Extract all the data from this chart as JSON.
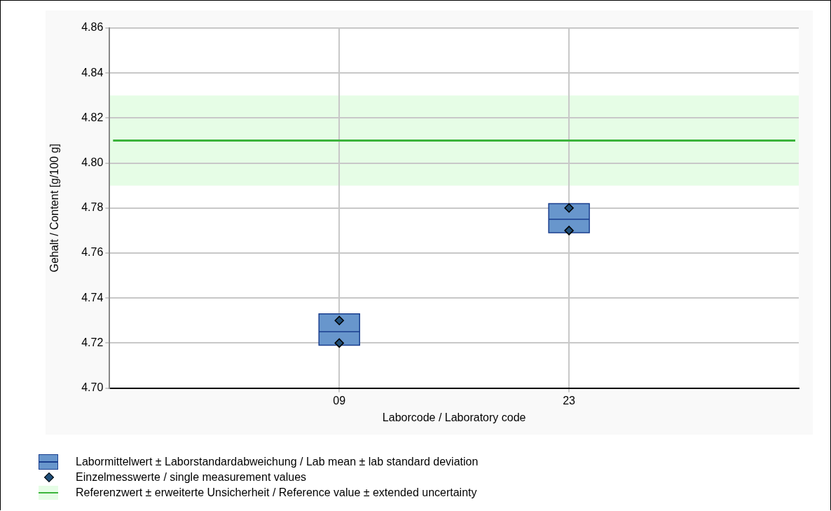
{
  "chart_data": {
    "type": "box",
    "xlabel": "Laborcode / Laboratory code",
    "ylabel": "Gehalt / Content [g/100 g]",
    "categories": [
      "09",
      "23"
    ],
    "series": [
      {
        "name": "Labormittelwert ± Laborstandardabweichung / Lab mean ± lab standard deviation",
        "color": "#6896cc",
        "boxes": [
          {
            "low": 4.719,
            "q1": 4.719,
            "median": 4.725,
            "q3": 4.733,
            "high": 4.733
          },
          {
            "low": 4.769,
            "q1": 4.769,
            "median": 4.775,
            "q3": 4.782,
            "high": 4.782
          }
        ]
      },
      {
        "type": "scatter",
        "name": "Einzelmesswerte / single measurement values",
        "color": "#1f4e79",
        "x": [
          "09",
          "09",
          "23",
          "23"
        ],
        "values": [
          4.72,
          4.73,
          4.77,
          4.78
        ]
      }
    ],
    "marker": "diamond",
    "ylim": [
      4.7,
      4.86
    ],
    "yticks": [
      {
        "value": 4.7,
        "label": "4.70"
      },
      {
        "value": 4.72,
        "label": "4.72"
      },
      {
        "value": 4.74,
        "label": "4.74"
      },
      {
        "value": 4.76,
        "label": "4.76"
      },
      {
        "value": 4.78,
        "label": "4.78"
      },
      {
        "value": 4.8,
        "label": "4.80"
      },
      {
        "value": 4.82,
        "label": "4.82"
      },
      {
        "value": 4.84,
        "label": "4.84"
      },
      {
        "value": 4.86,
        "label": "4.86"
      }
    ],
    "grid": true,
    "legend": "bottom",
    "ref_lines": [
      {
        "axis": "y",
        "value": 4.81,
        "label": "Referenzwert ± erweiterte Unsicherheit / Reference value ± extended uncertainty",
        "color": "#3cb43c"
      }
    ],
    "bands": [
      {
        "axis": "y",
        "from": 4.79,
        "to": 4.83,
        "color": "#e6fde6"
      }
    ]
  }
}
